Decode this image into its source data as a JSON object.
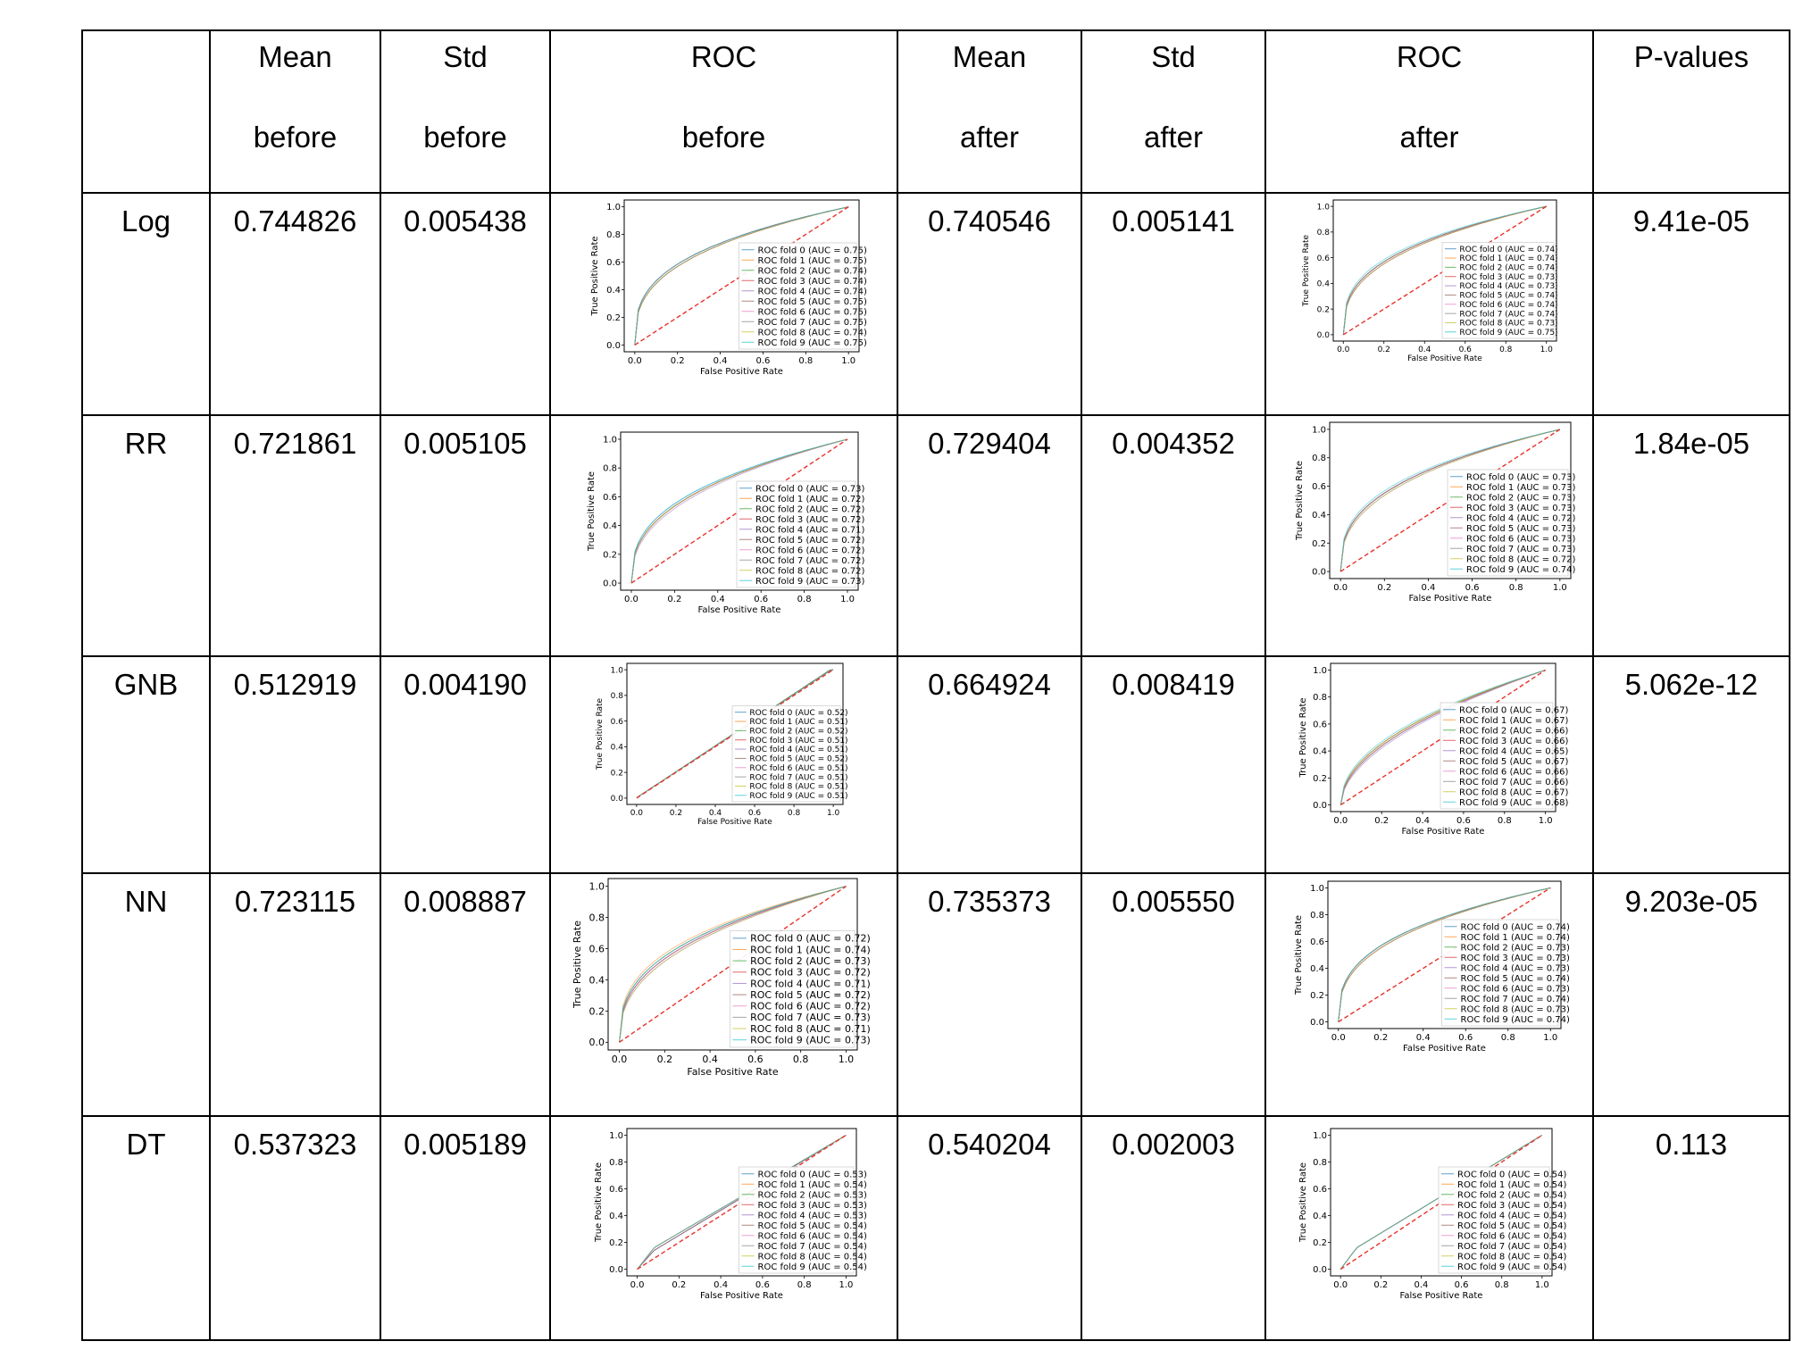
{
  "table": {
    "headers": [
      {
        "line1": "",
        "line2": ""
      },
      {
        "line1": "Mean",
        "line2": "before"
      },
      {
        "line1": "Std",
        "line2": "before"
      },
      {
        "line1": "ROC",
        "line2": "before"
      },
      {
        "line1": "Mean",
        "line2": "after"
      },
      {
        "line1": "Std",
        "line2": "after"
      },
      {
        "line1": "ROC",
        "line2": "after"
      },
      {
        "line1": "P-values",
        "line2": ""
      }
    ],
    "rows": [
      {
        "model": "Log",
        "mean_before": "0.744826",
        "std_before": "0.005438",
        "mean_after": "0.740546",
        "std_after": "0.005141",
        "p_value": "9.41e-05"
      },
      {
        "model": "RR",
        "mean_before": "0.721861",
        "std_before": "0.005105",
        "mean_after": "0.729404",
        "std_after": "0.004352",
        "p_value": "1.84e-05"
      },
      {
        "model": "GNB",
        "mean_before": "0.512919",
        "std_before": "0.004190",
        "mean_after": "0.664924",
        "std_after": "0.008419",
        "p_value": "5.062e-12"
      },
      {
        "model": "NN",
        "mean_before": "0.723115",
        "std_before": "0.008887",
        "mean_after": "0.735373",
        "std_after": "0.005550",
        "p_value": "9.203e-05"
      },
      {
        "model": "DT",
        "mean_before": "0.537323",
        "std_before": "0.005189",
        "mean_after": "0.540204",
        "std_after": "0.002003",
        "p_value": "0.113"
      }
    ]
  },
  "chart_data": [
    {
      "type": "line",
      "id": "log-before",
      "xlabel": "False Positive Rate",
      "ylabel": "True Positive Rate",
      "xlim": [
        0,
        1
      ],
      "ylim": [
        0,
        1
      ],
      "xticks": [
        "0.0",
        "0.2",
        "0.4",
        "0.6",
        "0.8",
        "1.0"
      ],
      "yticks": [
        "0.0",
        "0.2",
        "0.4",
        "0.6",
        "0.8",
        "1.0"
      ],
      "legend_position": "lower-right",
      "curve_shape": "concave",
      "legend": [
        "ROC fold 0 (AUC = 0.75)",
        "ROC fold 1 (AUC = 0.75)",
        "ROC fold 2 (AUC = 0.74)",
        "ROC fold 3 (AUC = 0.74)",
        "ROC fold 4 (AUC = 0.74)",
        "ROC fold 5 (AUC = 0.75)",
        "ROC fold 6 (AUC = 0.75)",
        "ROC fold 7 (AUC = 0.75)",
        "ROC fold 8 (AUC = 0.74)",
        "ROC fold 9 (AUC = 0.75)"
      ],
      "auc": [
        0.75,
        0.75,
        0.74,
        0.74,
        0.74,
        0.75,
        0.75,
        0.75,
        0.74,
        0.75
      ],
      "chance_line": true
    },
    {
      "type": "line",
      "id": "log-after",
      "xlabel": "False Positive Rate",
      "ylabel": "True Positive Rate",
      "xlim": [
        0,
        1
      ],
      "ylim": [
        0,
        1
      ],
      "xticks": [
        "0.0",
        "0.2",
        "0.4",
        "0.6",
        "0.8",
        "1.0"
      ],
      "yticks": [
        "0.0",
        "0.2",
        "0.4",
        "0.6",
        "0.8",
        "1.0"
      ],
      "legend_position": "lower-right",
      "curve_shape": "concave",
      "legend": [
        "ROC fold 0 (AUC = 0.74)",
        "ROC fold 1 (AUC = 0.74)",
        "ROC fold 2 (AUC = 0.74)",
        "ROC fold 3 (AUC = 0.73)",
        "ROC fold 4 (AUC = 0.73)",
        "ROC fold 5 (AUC = 0.74)",
        "ROC fold 6 (AUC = 0.74)",
        "ROC fold 7 (AUC = 0.74)",
        "ROC fold 8 (AUC = 0.73)",
        "ROC fold 9 (AUC = 0.75)"
      ],
      "auc": [
        0.74,
        0.74,
        0.74,
        0.73,
        0.73,
        0.74,
        0.74,
        0.74,
        0.73,
        0.75
      ],
      "chance_line": true
    },
    {
      "type": "line",
      "id": "rr-before",
      "xlabel": "False Positive Rate",
      "ylabel": "True Positive Rate",
      "xlim": [
        0,
        1
      ],
      "ylim": [
        0,
        1
      ],
      "xticks": [
        "0.0",
        "0.2",
        "0.4",
        "0.6",
        "0.8",
        "1.0"
      ],
      "yticks": [
        "0.0",
        "0.2",
        "0.4",
        "0.6",
        "0.8",
        "1.0"
      ],
      "legend_position": "lower-right",
      "curve_shape": "concave",
      "legend": [
        "ROC fold 0 (AUC = 0.73)",
        "ROC fold 1 (AUC = 0.72)",
        "ROC fold 2 (AUC = 0.72)",
        "ROC fold 3 (AUC = 0.72)",
        "ROC fold 4 (AUC = 0.71)",
        "ROC fold 5 (AUC = 0.72)",
        "ROC fold 6 (AUC = 0.72)",
        "ROC fold 7 (AUC = 0.72)",
        "ROC fold 8 (AUC = 0.72)",
        "ROC fold 9 (AUC = 0.73)"
      ],
      "auc": [
        0.73,
        0.72,
        0.72,
        0.72,
        0.71,
        0.72,
        0.72,
        0.72,
        0.72,
        0.73
      ],
      "chance_line": true
    },
    {
      "type": "line",
      "id": "rr-after",
      "xlabel": "False Positive Rate",
      "ylabel": "True Positive Rate",
      "xlim": [
        0,
        1
      ],
      "ylim": [
        0,
        1
      ],
      "xticks": [
        "0.0",
        "0.2",
        "0.4",
        "0.6",
        "0.8",
        "1.0"
      ],
      "yticks": [
        "0.0",
        "0.2",
        "0.4",
        "0.6",
        "0.8",
        "1.0"
      ],
      "legend_position": "lower-right",
      "curve_shape": "concave",
      "legend": [
        "ROC fold 0 (AUC = 0.73)",
        "ROC fold 1 (AUC = 0.73)",
        "ROC fold 2 (AUC = 0.73)",
        "ROC fold 3 (AUC = 0.73)",
        "ROC fold 4 (AUC = 0.72)",
        "ROC fold 5 (AUC = 0.73)",
        "ROC fold 6 (AUC = 0.73)",
        "ROC fold 7 (AUC = 0.73)",
        "ROC fold 8 (AUC = 0.72)",
        "ROC fold 9 (AUC = 0.74)"
      ],
      "auc": [
        0.73,
        0.73,
        0.73,
        0.73,
        0.72,
        0.73,
        0.73,
        0.73,
        0.72,
        0.74
      ],
      "chance_line": true
    },
    {
      "type": "line",
      "id": "gnb-before",
      "xlabel": "False Positive Rate",
      "ylabel": "True Positive Rate",
      "xlim": [
        0,
        1
      ],
      "ylim": [
        0,
        1
      ],
      "xticks": [
        "0.0",
        "0.2",
        "0.4",
        "0.6",
        "0.8",
        "1.0"
      ],
      "yticks": [
        "0.0",
        "0.2",
        "0.4",
        "0.6",
        "0.8",
        "1.0"
      ],
      "legend_position": "lower-right",
      "curve_shape": "near-diagonal",
      "legend": [
        "ROC fold 0 (AUC = 0.52)",
        "ROC fold 1 (AUC = 0.51)",
        "ROC fold 2 (AUC = 0.52)",
        "ROC fold 3 (AUC = 0.51)",
        "ROC fold 4 (AUC = 0.51)",
        "ROC fold 5 (AUC = 0.52)",
        "ROC fold 6 (AUC = 0.51)",
        "ROC fold 7 (AUC = 0.51)",
        "ROC fold 8 (AUC = 0.51)",
        "ROC fold 9 (AUC = 0.51)"
      ],
      "auc": [
        0.52,
        0.51,
        0.52,
        0.51,
        0.51,
        0.52,
        0.51,
        0.51,
        0.51,
        0.51
      ],
      "chance_line": true
    },
    {
      "type": "line",
      "id": "gnb-after",
      "xlabel": "False Positive Rate",
      "ylabel": "True Positive Rate",
      "xlim": [
        0,
        1
      ],
      "ylim": [
        0,
        1
      ],
      "xticks": [
        "0.0",
        "0.2",
        "0.4",
        "0.6",
        "0.8",
        "1.0"
      ],
      "yticks": [
        "0.0",
        "0.2",
        "0.4",
        "0.6",
        "0.8",
        "1.0"
      ],
      "legend_position": "lower-right",
      "curve_shape": "concave",
      "legend": [
        "ROC fold 0 (AUC = 0.67)",
        "ROC fold 1 (AUC = 0.67)",
        "ROC fold 2 (AUC = 0.66)",
        "ROC fold 3 (AUC = 0.66)",
        "ROC fold 4 (AUC = 0.65)",
        "ROC fold 5 (AUC = 0.67)",
        "ROC fold 6 (AUC = 0.66)",
        "ROC fold 7 (AUC = 0.66)",
        "ROC fold 8 (AUC = 0.67)",
        "ROC fold 9 (AUC = 0.68)"
      ],
      "auc": [
        0.67,
        0.67,
        0.66,
        0.66,
        0.65,
        0.67,
        0.66,
        0.66,
        0.67,
        0.68
      ],
      "chance_line": true
    },
    {
      "type": "line",
      "id": "nn-before",
      "xlabel": "False Positive Rate",
      "ylabel": "True Positive Rate",
      "xlim": [
        0,
        1
      ],
      "ylim": [
        0,
        1
      ],
      "xticks": [
        "0.0",
        "0.2",
        "0.4",
        "0.6",
        "0.8",
        "1.0"
      ],
      "yticks": [
        "0.0",
        "0.2",
        "0.4",
        "0.6",
        "0.8",
        "1.0"
      ],
      "legend_position": "lower-right",
      "curve_shape": "concave",
      "legend": [
        "ROC fold 0 (AUC = 0.72)",
        "ROC fold 1 (AUC = 0.74)",
        "ROC fold 2 (AUC = 0.73)",
        "ROC fold 3 (AUC = 0.72)",
        "ROC fold 4 (AUC = 0.71)",
        "ROC fold 5 (AUC = 0.72)",
        "ROC fold 6 (AUC = 0.72)",
        "ROC fold 7 (AUC = 0.73)",
        "ROC fold 8 (AUC = 0.71)",
        "ROC fold 9 (AUC = 0.73)"
      ],
      "auc": [
        0.72,
        0.74,
        0.73,
        0.72,
        0.71,
        0.72,
        0.72,
        0.73,
        0.71,
        0.73
      ],
      "chance_line": true
    },
    {
      "type": "line",
      "id": "nn-after",
      "xlabel": "False Positive Rate",
      "ylabel": "True Positive Rate",
      "xlim": [
        0,
        1
      ],
      "ylim": [
        0,
        1
      ],
      "xticks": [
        "0.0",
        "0.2",
        "0.4",
        "0.6",
        "0.8",
        "1.0"
      ],
      "yticks": [
        "0.0",
        "0.2",
        "0.4",
        "0.6",
        "0.8",
        "1.0"
      ],
      "legend_position": "lower-right",
      "curve_shape": "concave",
      "legend": [
        "ROC fold 0 (AUC = 0.74)",
        "ROC fold 1 (AUC = 0.74)",
        "ROC fold 2 (AUC = 0.73)",
        "ROC fold 3 (AUC = 0.73)",
        "ROC fold 4 (AUC = 0.73)",
        "ROC fold 5 (AUC = 0.74)",
        "ROC fold 6 (AUC = 0.73)",
        "ROC fold 7 (AUC = 0.74)",
        "ROC fold 8 (AUC = 0.73)",
        "ROC fold 9 (AUC = 0.74)"
      ],
      "auc": [
        0.74,
        0.74,
        0.73,
        0.73,
        0.73,
        0.74,
        0.73,
        0.74,
        0.73,
        0.74
      ],
      "chance_line": true
    },
    {
      "type": "line",
      "id": "dt-before",
      "xlabel": "False Positive Rate",
      "ylabel": "True Positive Rate",
      "xlim": [
        0,
        1
      ],
      "ylim": [
        0,
        1
      ],
      "xticks": [
        "0.0",
        "0.2",
        "0.4",
        "0.6",
        "0.8",
        "1.0"
      ],
      "yticks": [
        "0.0",
        "0.2",
        "0.4",
        "0.6",
        "0.8",
        "1.0"
      ],
      "legend_position": "lower-right",
      "curve_shape": "single-knee",
      "legend": [
        "ROC fold 0 (AUC = 0.53)",
        "ROC fold 1 (AUC = 0.54)",
        "ROC fold 2 (AUC = 0.53)",
        "ROC fold 3 (AUC = 0.53)",
        "ROC fold 4 (AUC = 0.53)",
        "ROC fold 5 (AUC = 0.54)",
        "ROC fold 6 (AUC = 0.54)",
        "ROC fold 7 (AUC = 0.54)",
        "ROC fold 8 (AUC = 0.54)",
        "ROC fold 9 (AUC = 0.54)"
      ],
      "auc": [
        0.53,
        0.54,
        0.53,
        0.53,
        0.53,
        0.54,
        0.54,
        0.54,
        0.54,
        0.54
      ],
      "chance_line": true
    },
    {
      "type": "line",
      "id": "dt-after",
      "xlabel": "False Positive Rate",
      "ylabel": "True Positive Rate",
      "xlim": [
        0,
        1
      ],
      "ylim": [
        0,
        1
      ],
      "xticks": [
        "0.0",
        "0.2",
        "0.4",
        "0.6",
        "0.8",
        "1.0"
      ],
      "yticks": [
        "0.0",
        "0.2",
        "0.4",
        "0.6",
        "0.8",
        "1.0"
      ],
      "legend_position": "lower-right",
      "curve_shape": "single-knee",
      "legend": [
        "ROC fold 0 (AUC = 0.54)",
        "ROC fold 1 (AUC = 0.54)",
        "ROC fold 2 (AUC = 0.54)",
        "ROC fold 3 (AUC = 0.54)",
        "ROC fold 4 (AUC = 0.54)",
        "ROC fold 5 (AUC = 0.54)",
        "ROC fold 6 (AUC = 0.54)",
        "ROC fold 7 (AUC = 0.54)",
        "ROC fold 8 (AUC = 0.54)",
        "ROC fold 9 (AUC = 0.54)"
      ],
      "auc": [
        0.54,
        0.54,
        0.54,
        0.54,
        0.54,
        0.54,
        0.54,
        0.54,
        0.54,
        0.54
      ],
      "chance_line": true
    }
  ],
  "colors": {
    "fold_lines": [
      "#1f77b4",
      "#ff7f0e",
      "#2ca02c",
      "#d62728",
      "#9467bd",
      "#8c564b",
      "#e377c2",
      "#7f7f7f",
      "#bcbd22",
      "#17becf"
    ],
    "chance_line": "#e8322b",
    "grid_border": "#000000"
  }
}
